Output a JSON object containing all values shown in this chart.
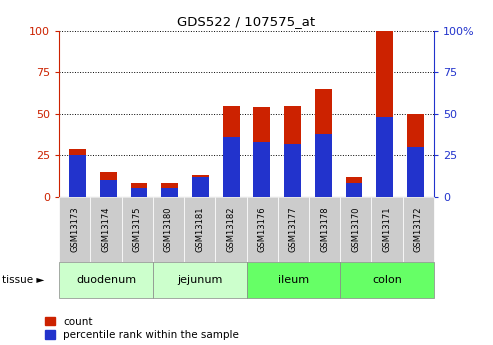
{
  "title": "GDS522 / 107575_at",
  "samples": [
    "GSM13173",
    "GSM13174",
    "GSM13175",
    "GSM13180",
    "GSM13181",
    "GSM13182",
    "GSM13176",
    "GSM13177",
    "GSM13178",
    "GSM13170",
    "GSM13171",
    "GSM13172"
  ],
  "count_values": [
    29,
    15,
    8,
    8,
    13,
    55,
    54,
    55,
    65,
    12,
    100,
    50
  ],
  "percentile_values": [
    25,
    10,
    5,
    5,
    12,
    36,
    33,
    32,
    38,
    8,
    48,
    30
  ],
  "tissue_groups": [
    {
      "label": "duodenum",
      "indices": [
        0,
        1,
        2
      ],
      "color": "#ccffcc"
    },
    {
      "label": "jejunum",
      "indices": [
        3,
        4,
        5
      ],
      "color": "#ccffcc"
    },
    {
      "label": "ileum",
      "indices": [
        6,
        7,
        8
      ],
      "color": "#66ff66"
    },
    {
      "label": "colon",
      "indices": [
        9,
        10,
        11
      ],
      "color": "#66ff66"
    }
  ],
  "bar_color_count": "#cc2200",
  "bar_color_percentile": "#2233cc",
  "bar_width": 0.55,
  "ylim": [
    0,
    100
  ],
  "yticks": [
    0,
    25,
    50,
    75,
    100
  ],
  "legend_count_label": "count",
  "legend_percentile_label": "percentile rank within the sample",
  "background_color": "#ffffff",
  "sample_label_bg": "#cccccc",
  "tissue_arrow_label": "tissue ►"
}
